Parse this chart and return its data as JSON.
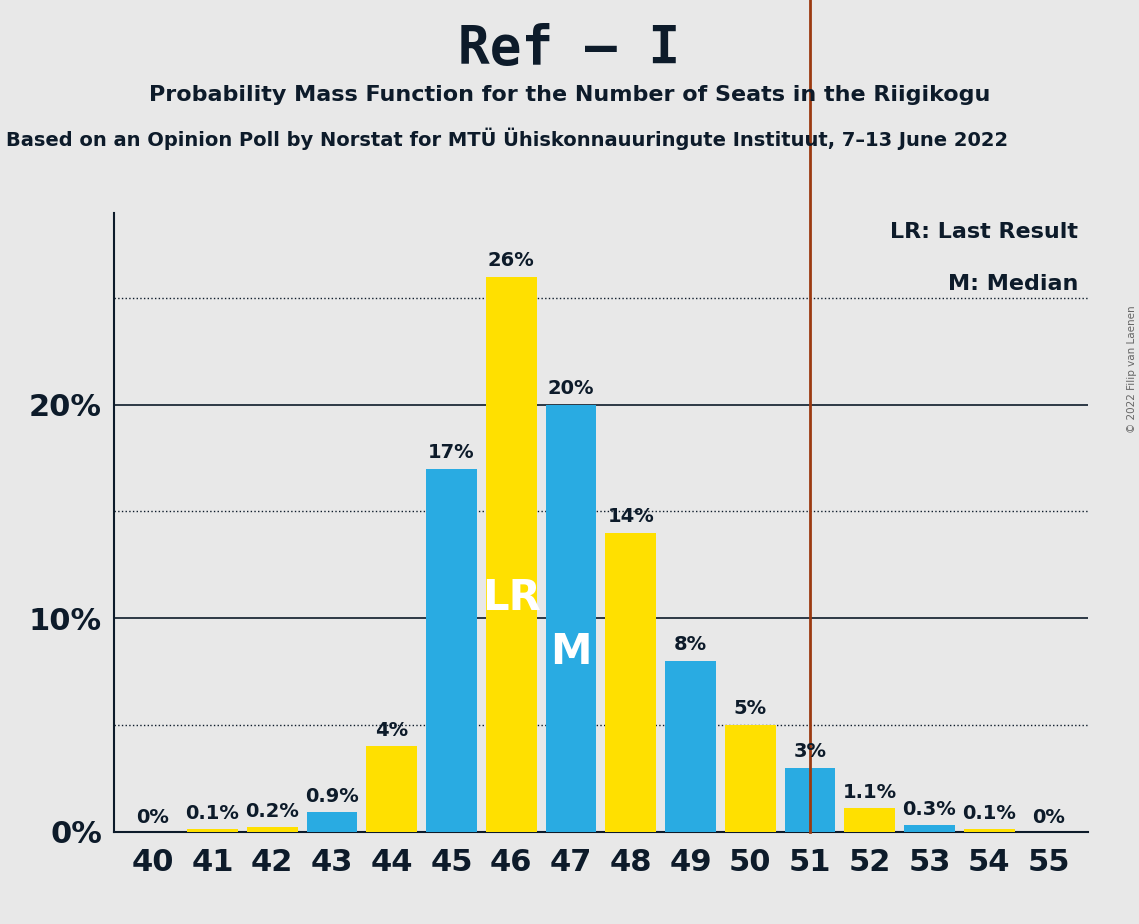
{
  "title": "Ref – I",
  "subtitle": "Probability Mass Function for the Number of Seats in the Riigikogu",
  "source": "Based on an Opinion Poll by Norstat for MTÜ Ühiskonnauuringute Instituut, 7–13 June 2022",
  "copyright": "© 2022 Filip van Laenen",
  "seats": [
    40,
    41,
    42,
    43,
    44,
    45,
    46,
    47,
    48,
    49,
    50,
    51,
    52,
    53,
    54,
    55
  ],
  "values": [
    0.0,
    0.1,
    0.2,
    0.9,
    4.0,
    17.0,
    26.0,
    20.0,
    14.0,
    8.0,
    5.0,
    3.0,
    1.1,
    0.3,
    0.1,
    0.0
  ],
  "labels": [
    "0%",
    "0.1%",
    "0.2%",
    "0.9%",
    "4%",
    "17%",
    "26%",
    "20%",
    "14%",
    "8%",
    "5%",
    "3%",
    "1.1%",
    "0.3%",
    "0.1%",
    "0%"
  ],
  "colors": [
    "#FFE000",
    "#FFE000",
    "#FFE000",
    "#29ABE2",
    "#FFE000",
    "#29ABE2",
    "#FFE000",
    "#29ABE2",
    "#FFE000",
    "#29ABE2",
    "#FFE000",
    "#29ABE2",
    "#FFE000",
    "#29ABE2",
    "#FFE000",
    "#29ABE2"
  ],
  "lr_seat": 46,
  "median_seat": 47,
  "vline_seat": 51,
  "vline_color": "#9B3A10",
  "background_color": "#E8E8E8",
  "dotted_lines": [
    5.0,
    15.0,
    25.0
  ],
  "solid_lines": [
    10.0,
    20.0
  ],
  "ylabel_values": [
    0,
    10,
    20
  ],
  "ylabel_labels": [
    "0%",
    "10%",
    "20%"
  ],
  "ymax": 29.0,
  "title_fontsize": 38,
  "subtitle_fontsize": 16,
  "source_fontsize": 14,
  "bar_label_fontsize": 14,
  "tick_fontsize": 22,
  "legend_fontsize": 16,
  "lr_label_fontsize": 30,
  "m_label_fontsize": 30,
  "dark_color": "#0D1B2A"
}
